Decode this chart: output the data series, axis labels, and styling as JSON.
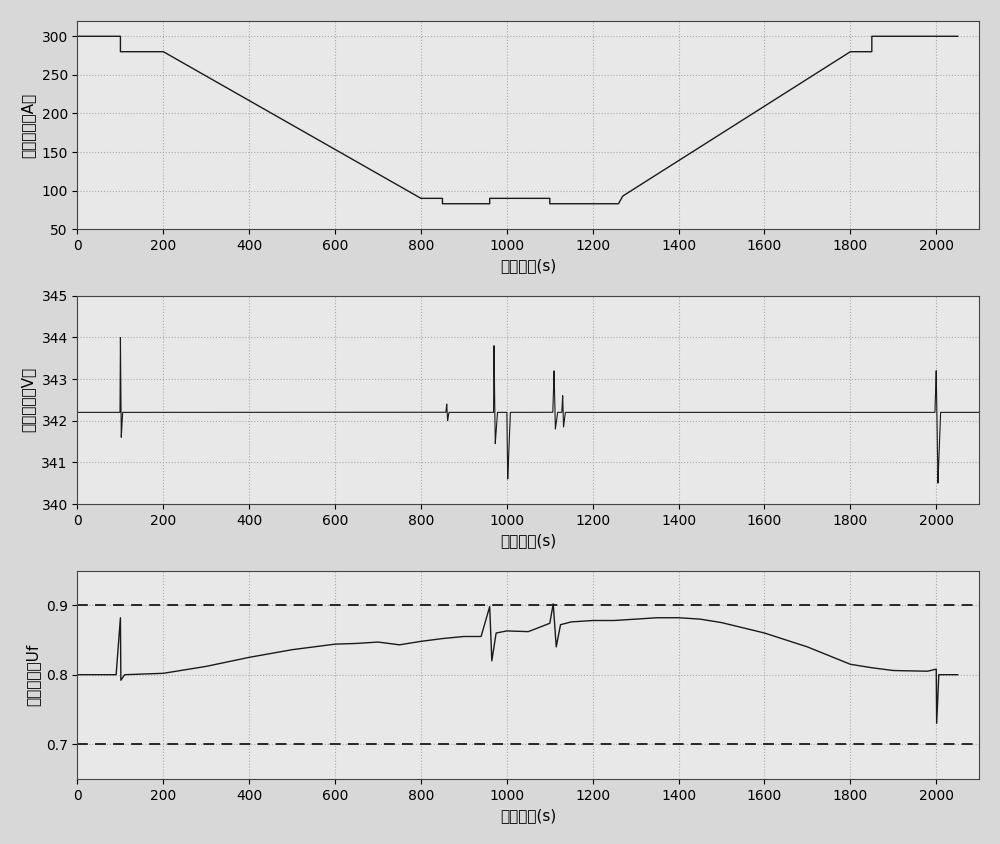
{
  "fig_width": 10.0,
  "fig_height": 8.44,
  "background_color": "#d8d8d8",
  "subplot_bg": "#e8e8e8",
  "line_color": "#1a1a1a",
  "grid_color": "#aaaaaa",
  "xlabel": "仿真时间(s)",
  "plot1": {
    "ylabel": "负荷电流（A）",
    "xlim": [
      0,
      2100
    ],
    "ylim": [
      50,
      320
    ],
    "yticks": [
      50,
      100,
      150,
      200,
      250,
      300
    ],
    "xticks": [
      0,
      200,
      400,
      600,
      800,
      1000,
      1200,
      1400,
      1600,
      1800,
      2000
    ],
    "points": [
      [
        0,
        300
      ],
      [
        100,
        300
      ],
      [
        100,
        280
      ],
      [
        200,
        280
      ],
      [
        800,
        90
      ],
      [
        850,
        90
      ],
      [
        850,
        83
      ],
      [
        960,
        83
      ],
      [
        960,
        90
      ],
      [
        1100,
        90
      ],
      [
        1100,
        83
      ],
      [
        1260,
        83
      ],
      [
        1270,
        93
      ],
      [
        1800,
        280
      ],
      [
        1850,
        280
      ],
      [
        1850,
        300
      ],
      [
        2050,
        300
      ]
    ]
  },
  "plot2": {
    "ylabel": "输出电压（V）",
    "xlim": [
      0,
      2100
    ],
    "ylim": [
      340,
      345
    ],
    "yticks": [
      340,
      341,
      342,
      343,
      344,
      345
    ],
    "xticks": [
      0,
      200,
      400,
      600,
      800,
      1000,
      1200,
      1400,
      1600,
      1800,
      2000
    ],
    "baseline": 342.2
  },
  "plot3": {
    "ylabel": "燃料利用率Uf",
    "xlim": [
      0,
      2100
    ],
    "ylim": [
      0.65,
      0.95
    ],
    "yticks": [
      0.7,
      0.8,
      0.9
    ],
    "xticks": [
      0,
      200,
      400,
      600,
      800,
      1000,
      1200,
      1400,
      1600,
      1800,
      2000
    ],
    "dashed_lines": [
      0.9,
      0.7
    ],
    "points": [
      [
        0,
        0.8
      ],
      [
        90,
        0.8
      ],
      [
        100,
        0.882
      ],
      [
        101,
        0.792
      ],
      [
        110,
        0.8
      ],
      [
        200,
        0.802
      ],
      [
        300,
        0.812
      ],
      [
        400,
        0.825
      ],
      [
        500,
        0.836
      ],
      [
        600,
        0.844
      ],
      [
        650,
        0.845
      ],
      [
        700,
        0.847
      ],
      [
        750,
        0.843
      ],
      [
        800,
        0.848
      ],
      [
        850,
        0.852
      ],
      [
        900,
        0.855
      ],
      [
        940,
        0.855
      ],
      [
        960,
        0.898
      ],
      [
        965,
        0.82
      ],
      [
        975,
        0.86
      ],
      [
        1000,
        0.863
      ],
      [
        1050,
        0.862
      ],
      [
        1100,
        0.874
      ],
      [
        1108,
        0.902
      ],
      [
        1115,
        0.84
      ],
      [
        1125,
        0.872
      ],
      [
        1150,
        0.876
      ],
      [
        1200,
        0.878
      ],
      [
        1250,
        0.878
      ],
      [
        1300,
        0.88
      ],
      [
        1350,
        0.882
      ],
      [
        1400,
        0.882
      ],
      [
        1450,
        0.88
      ],
      [
        1500,
        0.875
      ],
      [
        1600,
        0.86
      ],
      [
        1700,
        0.84
      ],
      [
        1800,
        0.815
      ],
      [
        1850,
        0.81
      ],
      [
        1900,
        0.806
      ],
      [
        1980,
        0.805
      ],
      [
        2000,
        0.808
      ],
      [
        2001,
        0.73
      ],
      [
        2006,
        0.8
      ],
      [
        2050,
        0.8
      ]
    ]
  },
  "voltage_spikes": [
    {
      "t": 100,
      "shape": [
        [
          -3,
          342.2
        ],
        [
          -1,
          342.2
        ],
        [
          0,
          344.0
        ],
        [
          2,
          341.6
        ],
        [
          5,
          342.2
        ],
        [
          20,
          342.2
        ]
      ]
    },
    {
      "t": 860,
      "shape": [
        [
          -2,
          342.2
        ],
        [
          0,
          342.4
        ],
        [
          2,
          342.0
        ],
        [
          5,
          342.2
        ],
        [
          20,
          342.2
        ]
      ]
    },
    {
      "t": 970,
      "shape": [
        [
          -3,
          342.2
        ],
        [
          -1,
          342.2
        ],
        [
          0,
          343.8
        ],
        [
          3,
          341.45
        ],
        [
          8,
          342.2
        ],
        [
          20,
          342.2
        ]
      ]
    },
    {
      "t": 1000,
      "shape": [
        [
          -2,
          342.2
        ],
        [
          0,
          342.2
        ],
        [
          2,
          340.6
        ],
        [
          8,
          342.2
        ],
        [
          20,
          342.2
        ]
      ]
    },
    {
      "t": 1110,
      "shape": [
        [
          -3,
          342.2
        ],
        [
          0,
          343.2
        ],
        [
          3,
          341.8
        ],
        [
          8,
          342.2
        ],
        [
          15,
          342.2
        ]
      ]
    },
    {
      "t": 1130,
      "shape": [
        [
          -2,
          342.2
        ],
        [
          0,
          342.6
        ],
        [
          2,
          341.85
        ],
        [
          6,
          342.2
        ],
        [
          15,
          342.2
        ]
      ]
    },
    {
      "t": 2000,
      "shape": [
        [
          -3,
          342.2
        ],
        [
          0,
          343.2
        ],
        [
          4,
          340.5
        ],
        [
          10,
          342.2
        ],
        [
          20,
          342.2
        ]
      ]
    }
  ]
}
